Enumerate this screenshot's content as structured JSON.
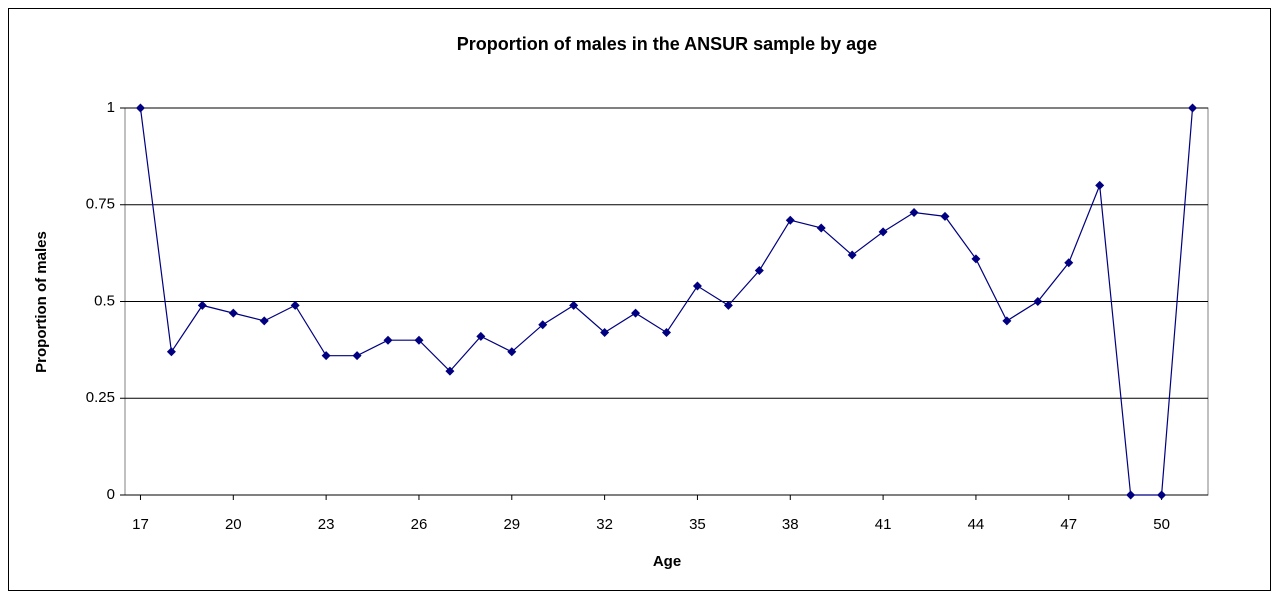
{
  "chart_data": {
    "type": "line",
    "title": "Proportion of males in the ANSUR sample by age",
    "x_label": "Age",
    "y_label": "Proportion of males",
    "x": [
      17,
      18,
      19,
      20,
      21,
      22,
      23,
      24,
      25,
      26,
      27,
      28,
      29,
      30,
      31,
      32,
      33,
      34,
      35,
      36,
      37,
      38,
      39,
      40,
      41,
      42,
      43,
      44,
      45,
      46,
      47,
      48,
      49,
      50,
      51
    ],
    "series": [
      {
        "color": "#000080",
        "values": [
          1,
          0.37,
          0.49,
          0.47,
          0.45,
          0.49,
          0.36,
          0.36,
          0.4,
          0.4,
          0.32,
          0.41,
          0.37,
          0.44,
          0.49,
          0.42,
          0.47,
          0.42,
          0.54,
          0.49,
          0.58,
          0.71,
          0.69,
          0.62,
          0.68,
          0.73,
          0.72,
          0.61,
          0.45,
          0.5,
          0.6,
          0.8,
          0,
          0,
          1
        ]
      }
    ],
    "xlim": [
      16.5,
      51.5
    ],
    "xticks": [
      17,
      20,
      23,
      26,
      29,
      32,
      35,
      38,
      41,
      44,
      47,
      50
    ],
    "ylim": [
      0,
      1
    ],
    "yticks": [
      0,
      0.25,
      0.5,
      0.75,
      1
    ],
    "grid": true
  }
}
